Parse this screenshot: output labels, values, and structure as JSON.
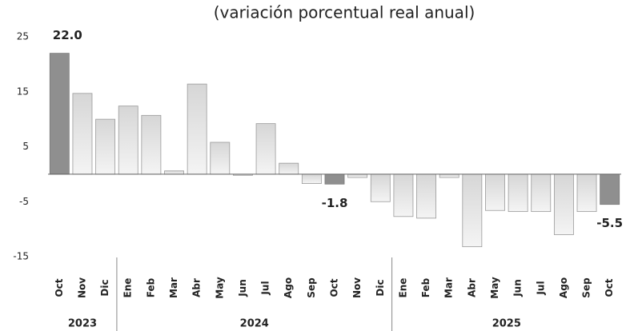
{
  "chart_data": {
    "type": "bar",
    "title": "(variación porcentual real anual)",
    "categories": [
      "Oct",
      "Nov",
      "Dic",
      "Ene",
      "Feb",
      "Mar",
      "Abr",
      "May",
      "Jun",
      "Jul",
      "Ago",
      "Sep",
      "Oct",
      "Nov",
      "Dic",
      "Ene",
      "Feb",
      "Mar",
      "Abr",
      "May",
      "Jun",
      "Jul",
      "Ago",
      "Sep",
      "Oct"
    ],
    "values": [
      22.0,
      14.7,
      10.0,
      12.4,
      10.7,
      0.6,
      16.4,
      5.8,
      -0.2,
      9.2,
      2.0,
      -1.7,
      -1.8,
      -0.6,
      -5.0,
      -7.7,
      -8.0,
      -0.6,
      -13.2,
      -6.6,
      -6.8,
      -6.8,
      -11.0,
      -6.8,
      -5.5
    ],
    "value_labels": [
      "22.0",
      null,
      null,
      null,
      null,
      null,
      null,
      null,
      null,
      null,
      null,
      null,
      "-1.8",
      null,
      null,
      null,
      null,
      null,
      null,
      null,
      null,
      null,
      null,
      null,
      "-5.5"
    ],
    "x_groups": [
      {
        "label": "2023",
        "count": 3
      },
      {
        "label": "2024",
        "count": 12
      },
      {
        "label": "2025",
        "count": 10
      }
    ],
    "color": "#e4e4e4",
    "highlight": [
      0,
      12,
      24
    ],
    "highlight_color": "#8f8f8f",
    "ylim": [
      -15,
      25
    ],
    "yticks": [
      25,
      15,
      5,
      -5,
      -15
    ],
    "grid": false
  }
}
